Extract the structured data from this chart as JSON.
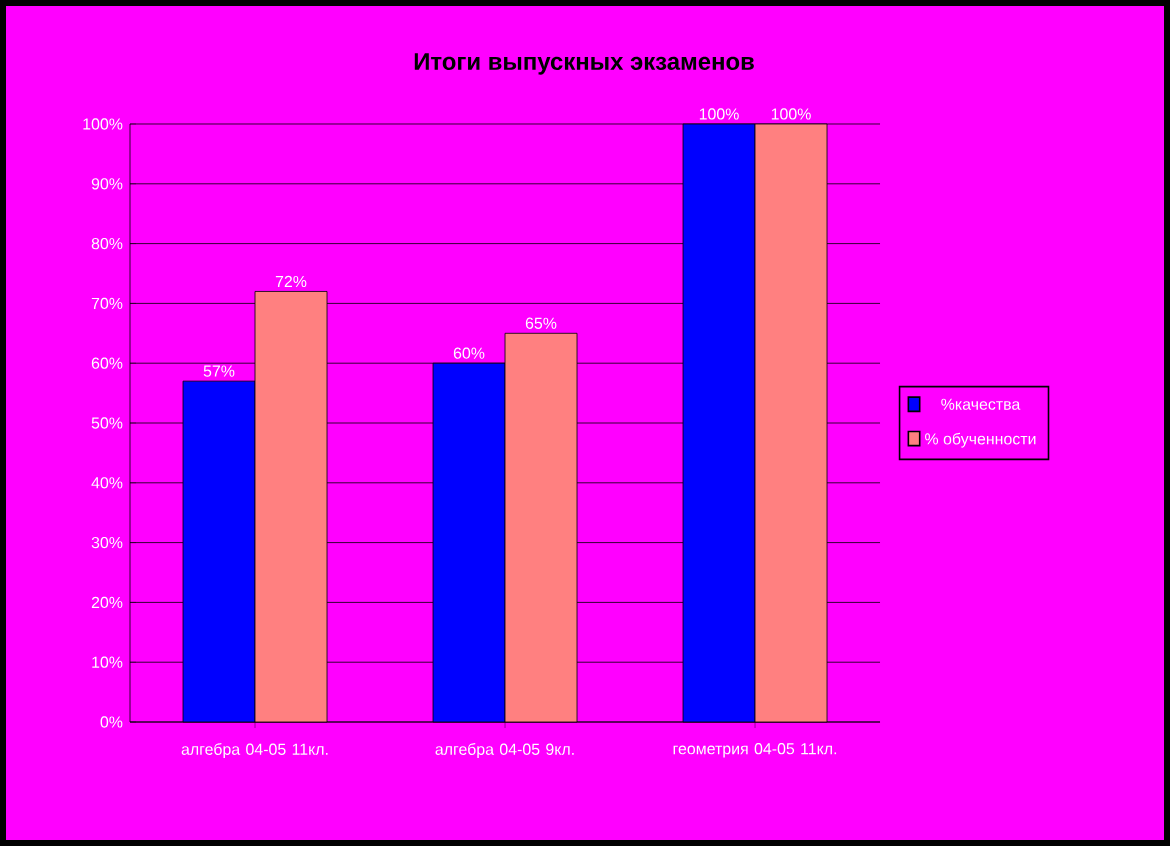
{
  "chart_data": {
    "type": "bar",
    "title": "Итоги выпускных экзаменов",
    "categories": [
      "алгебра 04-05 11кл.",
      "алгебра 04-05 9кл.",
      "геометрия 04-05 11кл."
    ],
    "series": [
      {
        "name": "%качества",
        "color": "#0000ff",
        "values": [
          57,
          60,
          100
        ],
        "value_labels": [
          "57%",
          "60%",
          "100%"
        ]
      },
      {
        "name": "% обученности",
        "color": "#ff8080",
        "values": [
          72,
          65,
          100
        ],
        "value_labels": [
          "72%",
          "65%",
          "100%"
        ]
      }
    ],
    "ylim": [
      0,
      100
    ],
    "yticks": [
      {
        "value": 0,
        "label": "0%"
      },
      {
        "value": 10,
        "label": "10%"
      },
      {
        "value": 20,
        "label": "20%"
      },
      {
        "value": 30,
        "label": "30%"
      },
      {
        "value": 40,
        "label": "40%"
      },
      {
        "value": 50,
        "label": "50%"
      },
      {
        "value": 60,
        "label": "60%"
      },
      {
        "value": 70,
        "label": "70%"
      },
      {
        "value": 80,
        "label": "80%"
      },
      {
        "value": 90,
        "label": "90%"
      },
      {
        "value": 100,
        "label": "100%"
      }
    ],
    "grid": "y",
    "legend": "right"
  }
}
